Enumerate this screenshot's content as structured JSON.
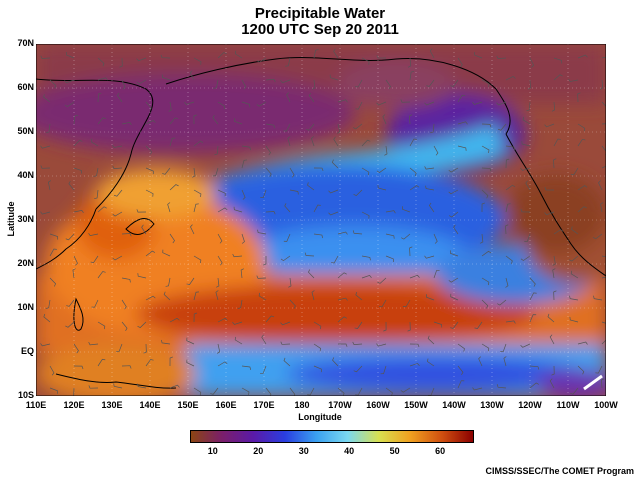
{
  "title": "Precipitable Water",
  "subtitle": "1200 UTC Sep 20 2011",
  "axes": {
    "xlabel": "Longitude",
    "ylabel": "Latitude",
    "lon_ticks": [
      "110E",
      "120E",
      "130E",
      "140E",
      "150E",
      "160E",
      "170E",
      "180",
      "170W",
      "160W",
      "150W",
      "140W",
      "130W",
      "120W",
      "110W",
      "100W"
    ],
    "lat_ticks": [
      "70N",
      "60N",
      "50N",
      "40N",
      "30N",
      "20N",
      "10N",
      "EQ",
      "10S"
    ]
  },
  "colorbar": {
    "ticks": [
      "10",
      "20",
      "30",
      "40",
      "50",
      "60"
    ],
    "colors": [
      "#8b4513",
      "#7a1e6b",
      "#5a1aa8",
      "#2a3ee0",
      "#3aa0f0",
      "#7ad8f0",
      "#d8e050",
      "#f0a020",
      "#d05010",
      "#8b0000"
    ]
  },
  "credit": "CIMSS/SSEC/The COMET Program",
  "chart_data": {
    "type": "heatmap",
    "title": "Precipitable Water",
    "subtitle": "1200 UTC Sep 20 2011",
    "xlabel": "Longitude",
    "ylabel": "Latitude",
    "xlim": [
      110,
      260
    ],
    "ylim": [
      -10,
      70
    ],
    "colorbar_range": [
      5,
      67
    ]
  }
}
